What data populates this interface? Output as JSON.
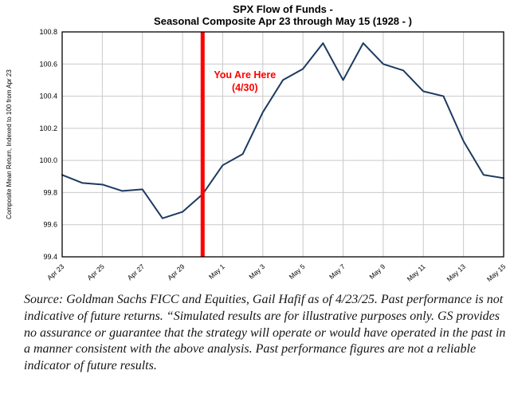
{
  "title": {
    "line1": "SPX Flow of Funds -",
    "line2": "Seasonal Composite Apr 23 through May 15 (1928 - )"
  },
  "chart_data": {
    "type": "line",
    "title": "SPX Flow of Funds - Seasonal Composite Apr 23 through May 15 (1928 - )",
    "xlabel": "",
    "ylabel": "Composite Mean Return, Indexed to 100 from Apr 23",
    "ylim": [
      99.4,
      100.8
    ],
    "ytick_step": 0.2,
    "grid": true,
    "legend": "none",
    "categories": [
      "Apr 23",
      "Apr 24",
      "Apr 25",
      "Apr 26",
      "Apr 27",
      "Apr 28",
      "Apr 29",
      "Apr 30",
      "May 1",
      "May 2",
      "May 3",
      "May 4",
      "May 5",
      "May 6",
      "May 7",
      "May 8",
      "May 9",
      "May 10",
      "May 11",
      "May 12",
      "May 13",
      "May 14",
      "May 15"
    ],
    "values": [
      99.91,
      99.86,
      99.85,
      99.81,
      99.82,
      99.64,
      99.68,
      99.79,
      99.97,
      100.04,
      100.3,
      100.5,
      100.57,
      100.73,
      100.5,
      100.73,
      100.6,
      100.56,
      100.43,
      100.4,
      100.12,
      99.91,
      99.89
    ],
    "x_tick_labels": [
      "Apr 23",
      "Apr 25",
      "Apr 27",
      "Apr 29",
      "May 1",
      "May 3",
      "May 5",
      "May 7",
      "May 9",
      "May 11",
      "May 13",
      "May 15"
    ],
    "line_color": "#1d3a5f",
    "grid_color": "#c9c9c9",
    "annotation": {
      "label_line1": "You Are Here",
      "label_line2": "(4/30)",
      "x_category": "Apr 30",
      "color": "#ff0000"
    }
  },
  "source_note": "Source: Goldman Sachs FICC and Equities, Gail Hafif as of 4/23/25. Past performance is not indicative of future returns. “Simulated results are for illustrative purposes only. GS provides no assurance or guarantee that the strategy will operate or would have operated in the past in a manner consistent with the above analysis. Past performance figures are not a reliable indicator of future results."
}
